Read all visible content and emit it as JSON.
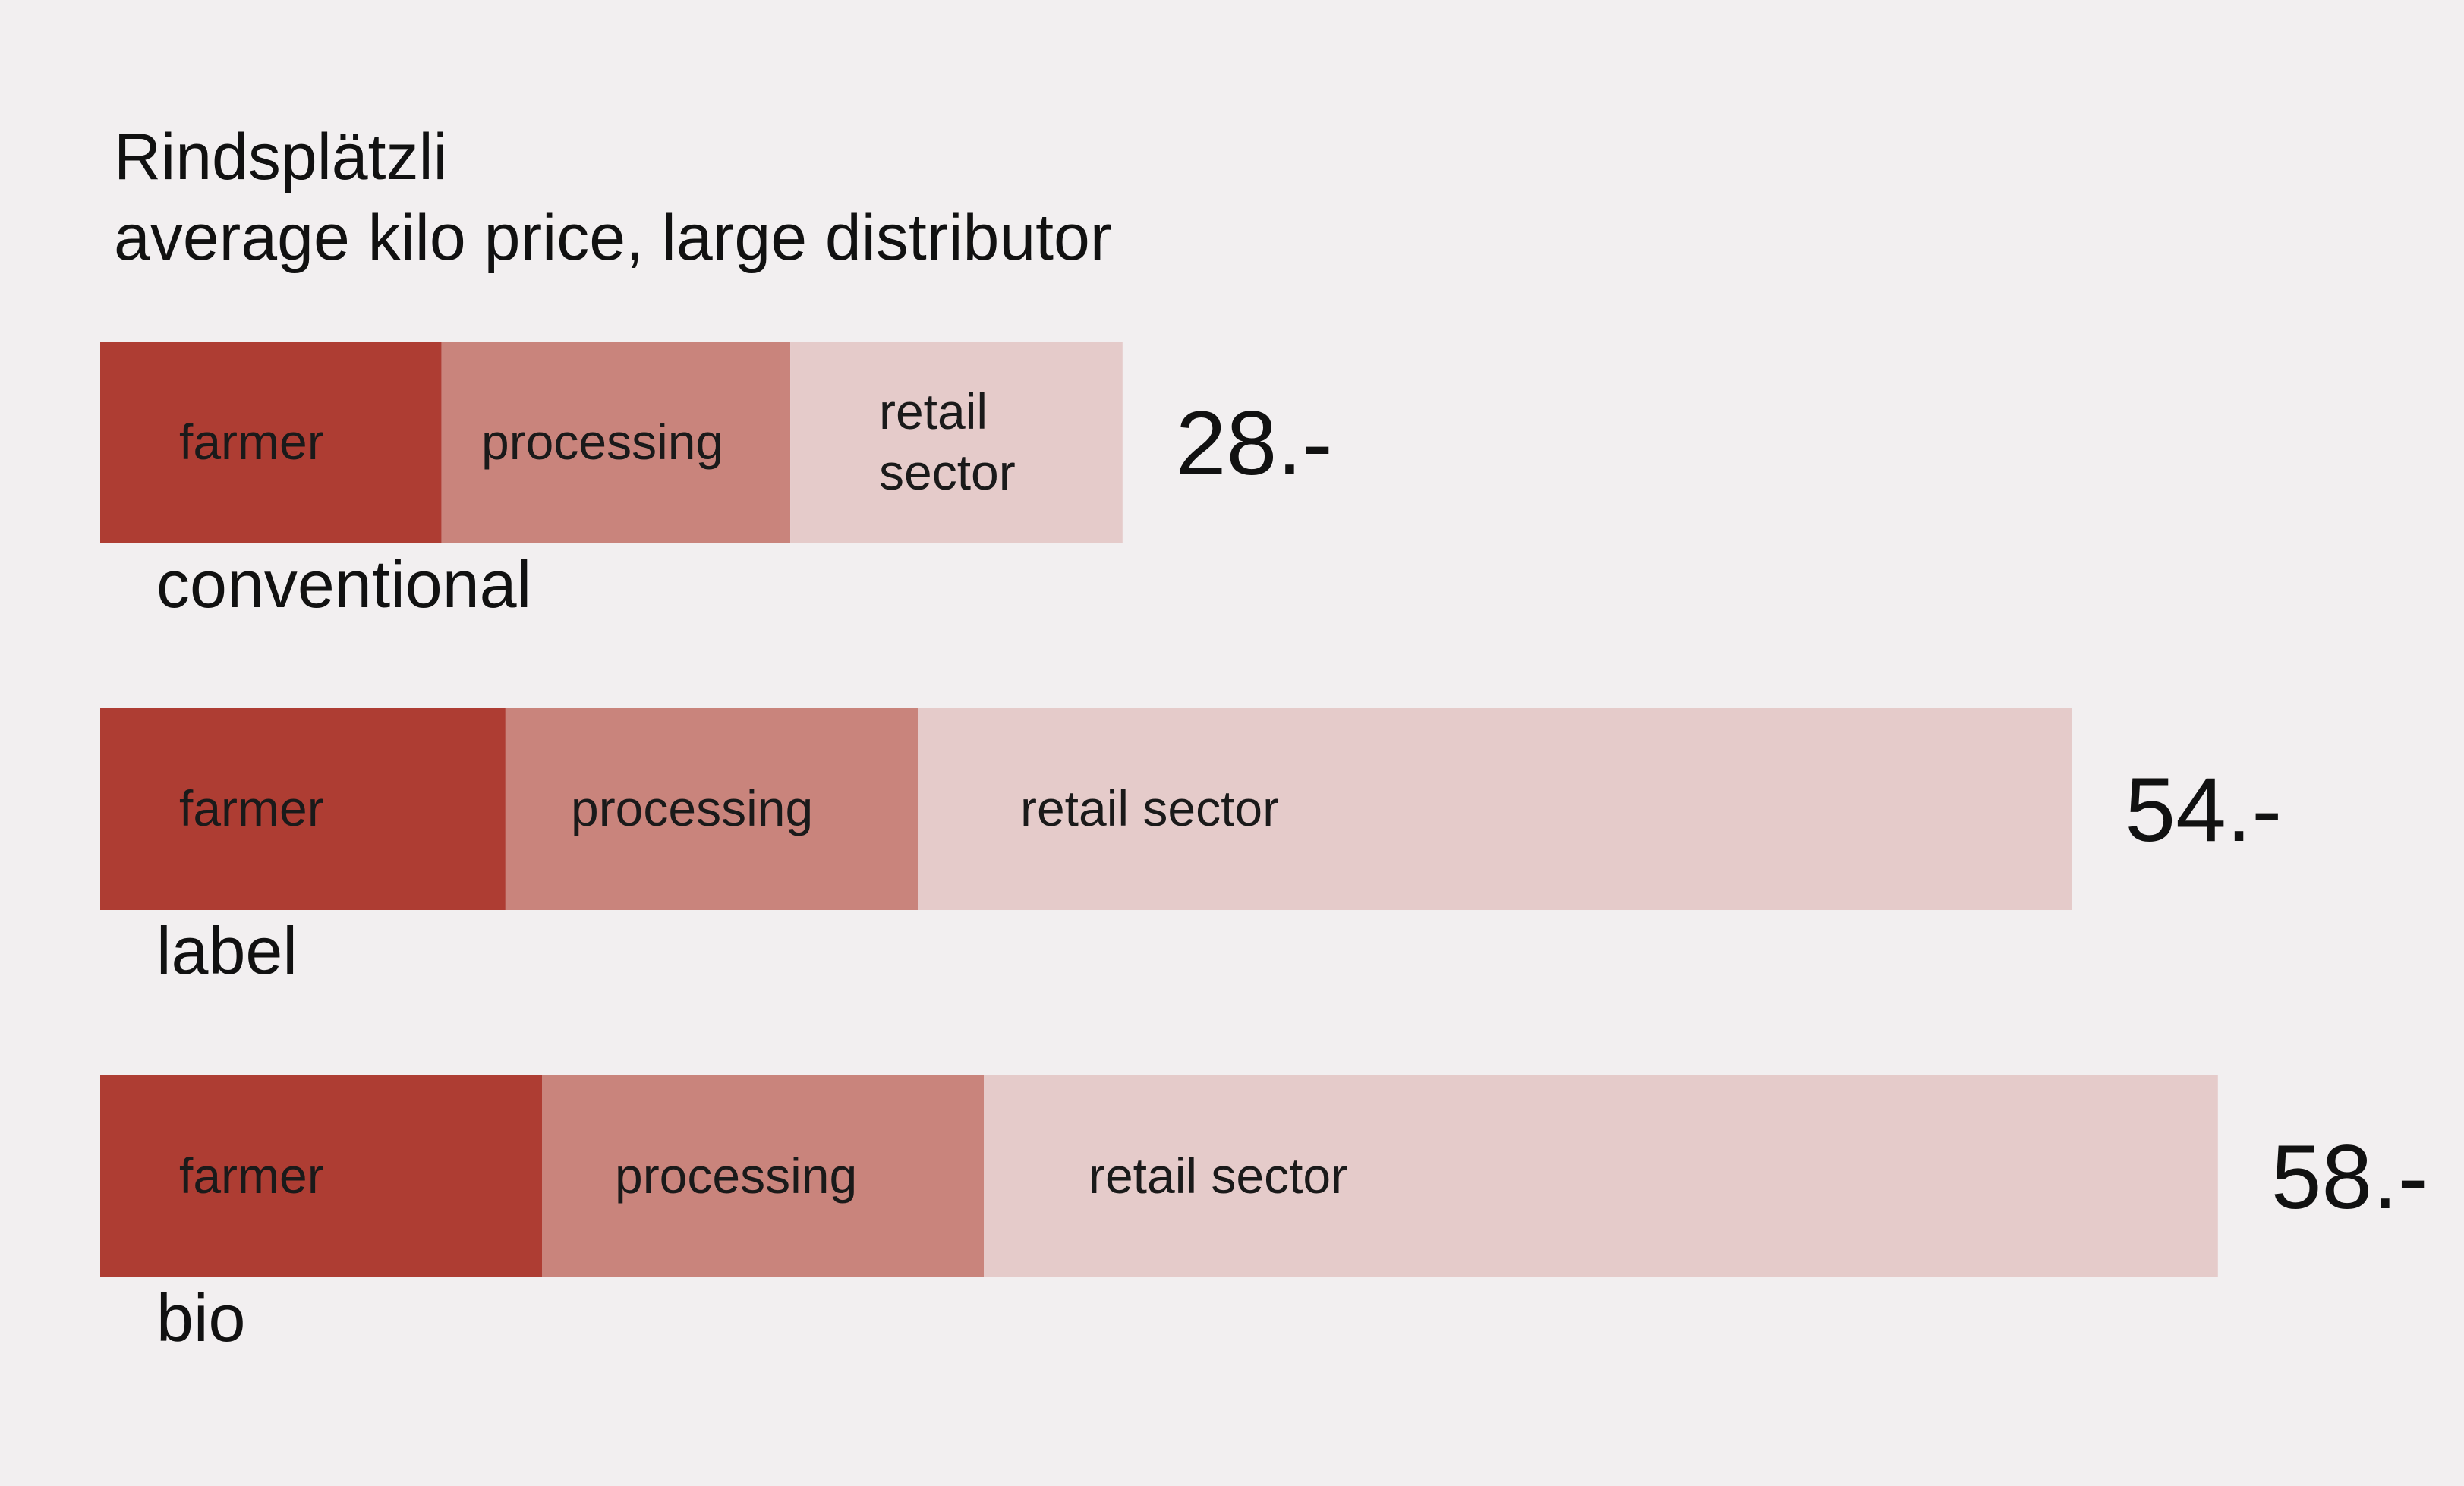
{
  "chart_data": {
    "type": "bar",
    "orientation": "horizontal",
    "stacked": true,
    "title": "Rindsplätzli",
    "subtitle": "average kilo price, large distributor",
    "categories": [
      "conventional",
      "label",
      "bio"
    ],
    "totals": [
      28,
      54,
      58
    ],
    "total_labels": [
      "28.-",
      "54.-",
      "58.-"
    ],
    "series": [
      {
        "color": "#ae3d33",
        "values": [
          9.35,
          11.1,
          12.1
        ],
        "segment_labels": [
          [
            "farmer"
          ],
          [
            "farmer"
          ],
          [
            "farmer"
          ]
        ]
      },
      {
        "color": "#c9847c",
        "values": [
          9.55,
          11.3,
          12.1
        ],
        "segment_labels": [
          [
            "processing"
          ],
          [
            "processing"
          ],
          [
            "processing"
          ]
        ]
      },
      {
        "color": "#e5cbca",
        "values": [
          9.1,
          31.6,
          33.8
        ],
        "segment_labels": [
          [
            "retail",
            "sector"
          ],
          [
            "retail sector"
          ],
          [
            "retail sector"
          ]
        ]
      }
    ],
    "grid": false,
    "legend": "none"
  }
}
